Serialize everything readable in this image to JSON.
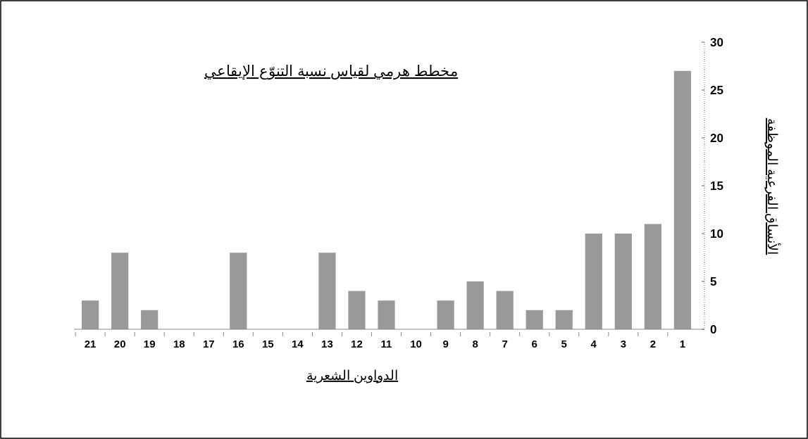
{
  "chart_data": {
    "type": "bar",
    "title": "مخطط هرمي لقياس نسبة التنوّع الإيقاعي",
    "xlabel": "الدواوين الشعرية",
    "ylabel": "الأنساق الفرعية الموظفة",
    "categories": [
      "21",
      "20",
      "19",
      "18",
      "17",
      "16",
      "15",
      "14",
      "13",
      "12",
      "11",
      "10",
      "9",
      "8",
      "7",
      "6",
      "5",
      "4",
      "3",
      "2",
      "1"
    ],
    "values": [
      3,
      8,
      2,
      0,
      0,
      8,
      0,
      0,
      8,
      4,
      3,
      0,
      3,
      5,
      4,
      2,
      2,
      10,
      10,
      11,
      27
    ],
    "color": "#999999",
    "ylim": [
      0,
      30
    ],
    "yticks": [
      0,
      5,
      10,
      15,
      20,
      25,
      30
    ],
    "grid": false
  }
}
